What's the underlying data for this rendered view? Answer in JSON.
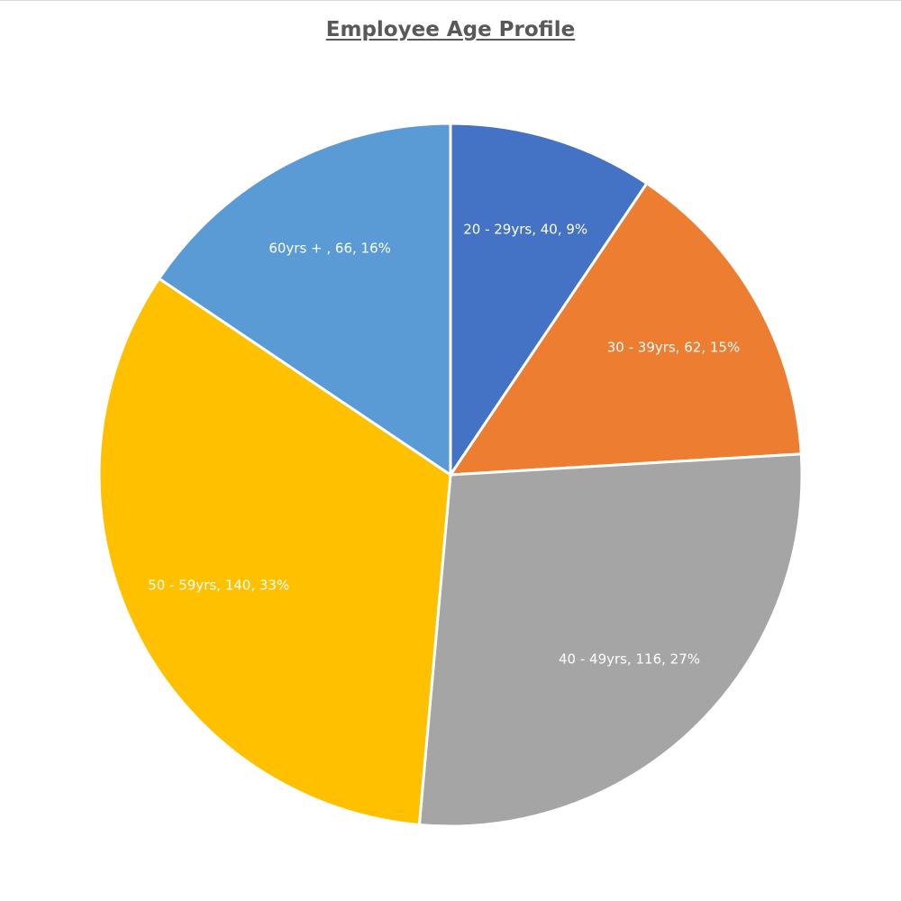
{
  "chart_data": {
    "type": "pie",
    "title": "Employee Age Profile",
    "slices": [
      {
        "label": "20 - 29yrs, 40, 9%",
        "category": "20 - 29yrs",
        "value": 40,
        "percent": 9,
        "color": "#4472c4"
      },
      {
        "label": "30 - 39yrs, 62, 15%",
        "category": "30 - 39yrs",
        "value": 62,
        "percent": 15,
        "color": "#ed7d31"
      },
      {
        "label": "40 - 49yrs, 116, 27%",
        "category": "40 - 49yrs",
        "value": 116,
        "percent": 27,
        "color": "#a5a5a5"
      },
      {
        "label": "50 - 59yrs, 140, 33%",
        "category": "50 - 59yrs",
        "value": 140,
        "percent": 33,
        "color": "#ffc000"
      },
      {
        "label": "60yrs + , 66, 16%",
        "category": "60yrs +",
        "value": 66,
        "percent": 16,
        "color": "#5b9bd5"
      }
    ],
    "start_angle": "12 o'clock",
    "direction": "clockwise",
    "legend": "none",
    "data_labels": "inside"
  }
}
